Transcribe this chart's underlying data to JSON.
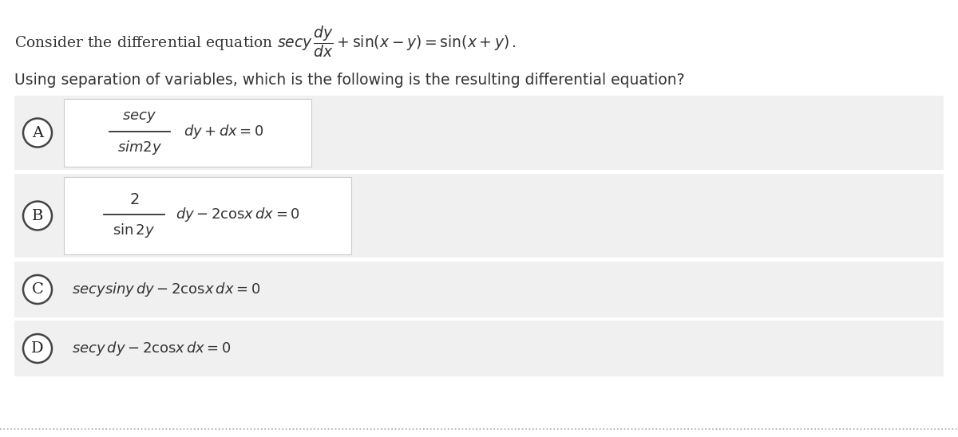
{
  "bg_color": "#ffffff",
  "row_bg_color": "#f0f0f0",
  "inner_box_color": "#ffffff",
  "border_color": "#cccccc",
  "text_color": "#333333",
  "figwidth": 12.0,
  "figheight": 5.48,
  "dpi": 100,
  "title_eq": "Consider the differential equation $\\mathit{secy}\\,\\dfrac{dy}{dx} + \\sin(x-y) = \\sin(x+y).$",
  "title_q": "Using separation of variables, which is the following is the resulting differential equation?",
  "opt_A_num": "$\\mathit{secy}$",
  "opt_A_den": "$\\mathit{sim2y}$",
  "opt_A_rest": "$dy + dx = 0$",
  "opt_B_num": "$2$",
  "opt_B_den": "$\\sin 2y$",
  "opt_B_rest": "$dy - 2\\mathrm{cos}x\\,dx = 0$",
  "opt_C_text": "$\\mathit{secy}\\mathit{sin}y\\,dy - 2\\mathrm{cos}x\\,dx = 0$",
  "opt_D_text": "$\\mathit{secy}\\,dy - 2\\mathrm{cos}x\\,dx = 0$",
  "labels": [
    "A",
    "B",
    "C",
    "D"
  ]
}
